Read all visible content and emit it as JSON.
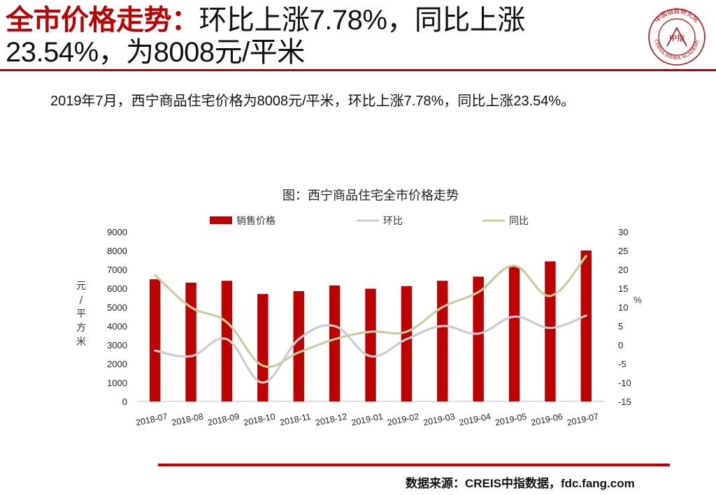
{
  "header": {
    "lead": "全市价格走势：",
    "rest": "环比上涨7.78%，同比上涨23.54%，为8008元/平米"
  },
  "logo": {
    "ring_text": "CHINA INDEX ACADEMY",
    "center_text": "中指",
    "top_text": "中国指数研究院",
    "color": "#c00000"
  },
  "summary": "2019年7月，西宁商品住宅价格为8008元/平米，环比上涨7.78%，同比上涨23.54%。",
  "footer": {
    "source": "数据来源：CREIS中指数据，fdc.fang.com"
  },
  "chart_data": {
    "type": "bar",
    "title": "图：西宁商品住宅全市价格走势",
    "categories": [
      "2018-07",
      "2018-08",
      "2018-09",
      "2018-10",
      "2018-11",
      "2018-12",
      "2019-01",
      "2019-02",
      "2019-03",
      "2019-04",
      "2019-05",
      "2019-06",
      "2019-07"
    ],
    "series": [
      {
        "name": "销售价格",
        "type": "bar",
        "axis": "left",
        "color": "#c00000",
        "values": [
          6480,
          6300,
          6400,
          5700,
          5850,
          6150,
          5980,
          6120,
          6400,
          6620,
          7150,
          7430,
          8008
        ]
      },
      {
        "name": "环比",
        "type": "line",
        "axis": "right",
        "color": "#c8cdd3",
        "values": [
          -1.5,
          -3,
          1.5,
          -10,
          1.5,
          5,
          -3,
          1.5,
          5,
          3,
          7.5,
          4.5,
          7.78
        ]
      },
      {
        "name": "同比",
        "type": "line",
        "axis": "right",
        "color": "#c6cf9c",
        "values": [
          18.5,
          10,
          6,
          -5.5,
          -2,
          1.5,
          3.5,
          3.5,
          10,
          14,
          21,
          13,
          23.54
        ]
      }
    ],
    "yleft": {
      "label": "元/平方米",
      "min": 0,
      "max": 9000,
      "step": 1000
    },
    "yright": {
      "label": "%",
      "min": -15,
      "max": 30,
      "step": 5
    },
    "legend": "top",
    "grid": false
  }
}
